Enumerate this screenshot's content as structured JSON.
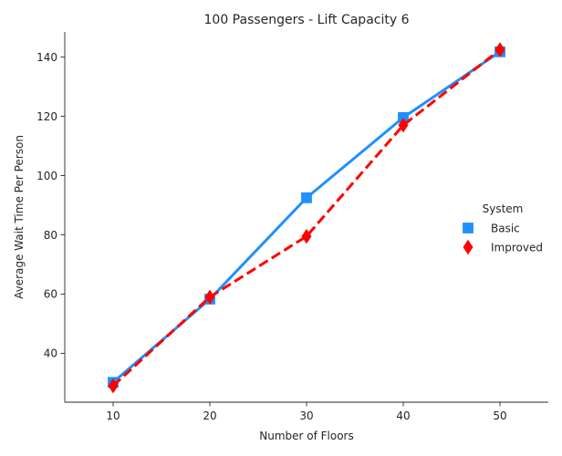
{
  "chart_data": {
    "type": "line",
    "title": "100 Passengers - Lift Capacity 6",
    "xlabel": "Number of Floors",
    "ylabel": "Average Wait Time Per Person",
    "categories": [
      "10",
      "20",
      "30",
      "40",
      "50"
    ],
    "yticks": [
      "40",
      "60",
      "80",
      "100",
      "120",
      "140"
    ],
    "ylim": [
      23.5,
      148.5
    ],
    "grid": false,
    "legend": {
      "title": "System",
      "placement": "right"
    },
    "series": [
      {
        "name": "Basic",
        "values": [
          30.2,
          58.3,
          92.5,
          119.6,
          141.8
        ],
        "color": "#1e90ff",
        "marker": "square",
        "linestyle": "solid"
      },
      {
        "name": "Improved",
        "values": [
          29.0,
          59.0,
          79.5,
          117.0,
          142.5
        ],
        "color": "#ff0000",
        "marker": "diamond",
        "linestyle": "dashed"
      }
    ]
  }
}
